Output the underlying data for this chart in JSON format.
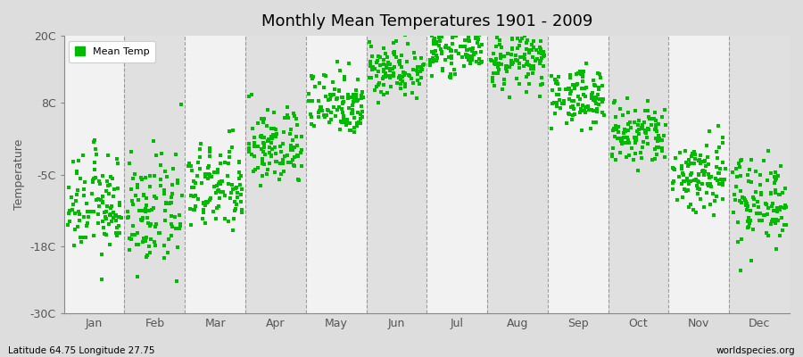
{
  "title": "Monthly Mean Temperatures 1901 - 2009",
  "ylabel": "Temperature",
  "xlabel_labels": [
    "Jan",
    "Feb",
    "Mar",
    "Apr",
    "May",
    "Jun",
    "Jul",
    "Aug",
    "Sep",
    "Oct",
    "Nov",
    "Dec"
  ],
  "ytick_labels": [
    "20C",
    "8C",
    "-5C",
    "-18C",
    "-30C"
  ],
  "ytick_values": [
    20,
    8,
    -5,
    -18,
    -30
  ],
  "ylim": [
    -30,
    20
  ],
  "legend_label": "Mean Temp",
  "dot_color": "#00bb00",
  "bg_light": "#f2f2f2",
  "bg_dark": "#e0e0e0",
  "figure_bg": "#dddddd",
  "subtitle_left": "Latitude 64.75 Longitude 27.75",
  "subtitle_right": "worldspecies.org",
  "years": 109,
  "monthly_means": [
    -10.5,
    -12.0,
    -7.5,
    0.0,
    8.0,
    14.0,
    17.5,
    15.5,
    9.0,
    2.0,
    -5.0,
    -9.5
  ],
  "monthly_stds": [
    4.5,
    5.0,
    4.0,
    3.5,
    3.0,
    2.5,
    2.0,
    2.5,
    2.5,
    3.0,
    3.5,
    4.0
  ]
}
